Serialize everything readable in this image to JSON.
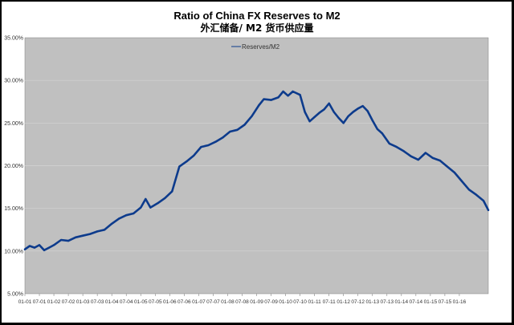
{
  "chart_data": {
    "type": "line",
    "title": "Ratio of China FX Reserves to M2",
    "subtitle": "外汇储备/ M2 货币供应量",
    "legend": {
      "position": "top-center",
      "entries": [
        "Reserves/M2"
      ]
    },
    "series": [
      {
        "name": "Reserves/M2",
        "color": "#0d3b8c",
        "points": [
          [
            "2001-01",
            10.2
          ],
          [
            "2001-03",
            10.6
          ],
          [
            "2001-05",
            10.4
          ],
          [
            "2001-07",
            10.7
          ],
          [
            "2001-09",
            10.1
          ],
          [
            "2001-11",
            10.4
          ],
          [
            "2002-01",
            10.7
          ],
          [
            "2002-04",
            11.3
          ],
          [
            "2002-07",
            11.2
          ],
          [
            "2002-10",
            11.6
          ],
          [
            "2003-01",
            11.8
          ],
          [
            "2003-04",
            12.0
          ],
          [
            "2003-07",
            12.3
          ],
          [
            "2003-10",
            12.5
          ],
          [
            "2004-01",
            13.2
          ],
          [
            "2004-04",
            13.8
          ],
          [
            "2004-07",
            14.2
          ],
          [
            "2004-10",
            14.4
          ],
          [
            "2005-01",
            15.1
          ],
          [
            "2005-03",
            16.1
          ],
          [
            "2005-05",
            15.1
          ],
          [
            "2005-08",
            15.6
          ],
          [
            "2005-11",
            16.2
          ],
          [
            "2006-02",
            17.0
          ],
          [
            "2006-05",
            19.9
          ],
          [
            "2006-08",
            20.5
          ],
          [
            "2006-11",
            21.2
          ],
          [
            "2007-02",
            22.2
          ],
          [
            "2007-05",
            22.4
          ],
          [
            "2007-08",
            22.8
          ],
          [
            "2007-11",
            23.3
          ],
          [
            "2008-02",
            24.0
          ],
          [
            "2008-05",
            24.2
          ],
          [
            "2008-08",
            24.8
          ],
          [
            "2008-11",
            25.8
          ],
          [
            "2009-02",
            27.1
          ],
          [
            "2009-04",
            27.8
          ],
          [
            "2009-07",
            27.7
          ],
          [
            "2009-10",
            28.0
          ],
          [
            "2009-12",
            28.7
          ],
          [
            "2010-02",
            28.2
          ],
          [
            "2010-04",
            28.7
          ],
          [
            "2010-07",
            28.3
          ],
          [
            "2010-09",
            26.3
          ],
          [
            "2010-11",
            25.2
          ],
          [
            "2011-01",
            25.7
          ],
          [
            "2011-03",
            26.2
          ],
          [
            "2011-05",
            26.6
          ],
          [
            "2011-07",
            27.3
          ],
          [
            "2011-09",
            26.3
          ],
          [
            "2011-11",
            25.6
          ],
          [
            "2012-01",
            25.0
          ],
          [
            "2012-03",
            25.8
          ],
          [
            "2012-05",
            26.3
          ],
          [
            "2012-07",
            26.7
          ],
          [
            "2012-09",
            27.0
          ],
          [
            "2012-11",
            26.4
          ],
          [
            "2013-01",
            25.3
          ],
          [
            "2013-03",
            24.3
          ],
          [
            "2013-05",
            23.8
          ],
          [
            "2013-08",
            22.6
          ],
          [
            "2013-11",
            22.2
          ],
          [
            "2014-02",
            21.7
          ],
          [
            "2014-05",
            21.1
          ],
          [
            "2014-08",
            20.7
          ],
          [
            "2014-11",
            21.5
          ],
          [
            "2015-02",
            20.9
          ],
          [
            "2015-05",
            20.6
          ],
          [
            "2015-08",
            19.9
          ],
          [
            "2015-11",
            19.2
          ],
          [
            "2016-02",
            18.2
          ],
          [
            "2016-05",
            17.2
          ],
          [
            "2016-08",
            16.6
          ],
          [
            "2016-11",
            15.9
          ],
          [
            "2017-01",
            14.8
          ]
        ]
      }
    ],
    "y_axis": {
      "min": 5,
      "max": 35,
      "step": 5,
      "tick_labels": [
        "5.00%",
        "10.00%",
        "15.00%",
        "20.00%",
        "25.00%",
        "30.00%",
        "35.00%"
      ]
    },
    "x_axis": {
      "tick_labels": [
        "01-01",
        "07-01",
        "01-02",
        "07-02",
        "01-03",
        "07-03",
        "01-04",
        "07-04",
        "01-05",
        "07-05",
        "01-06",
        "07-06",
        "01-07",
        "07-07",
        "01-08",
        "07-08",
        "01-09",
        "07-09",
        "01-10",
        "07-10",
        "01-11",
        "07-11",
        "01-12",
        "07-12",
        "01-13",
        "07-13",
        "01-14",
        "07-14",
        "01-15",
        "07-15",
        "01-16"
      ],
      "tick_dates": [
        "2001-01",
        "2001-07",
        "2002-01",
        "2002-07",
        "2003-01",
        "2003-07",
        "2004-01",
        "2004-07",
        "2005-01",
        "2005-07",
        "2006-01",
        "2006-07",
        "2007-01",
        "2007-07",
        "2008-01",
        "2008-07",
        "2009-01",
        "2009-07",
        "2010-01",
        "2010-07",
        "2011-01",
        "2011-07",
        "2012-01",
        "2012-07",
        "2013-01",
        "2013-07",
        "2014-01",
        "2014-07",
        "2015-01",
        "2015-07",
        "2016-01"
      ]
    },
    "grid": true,
    "colors": {
      "plot_background": "#c0c0c0",
      "chart_background": "#ffffff",
      "frame": "#000000",
      "gridline": "#d4d4d4"
    }
  }
}
